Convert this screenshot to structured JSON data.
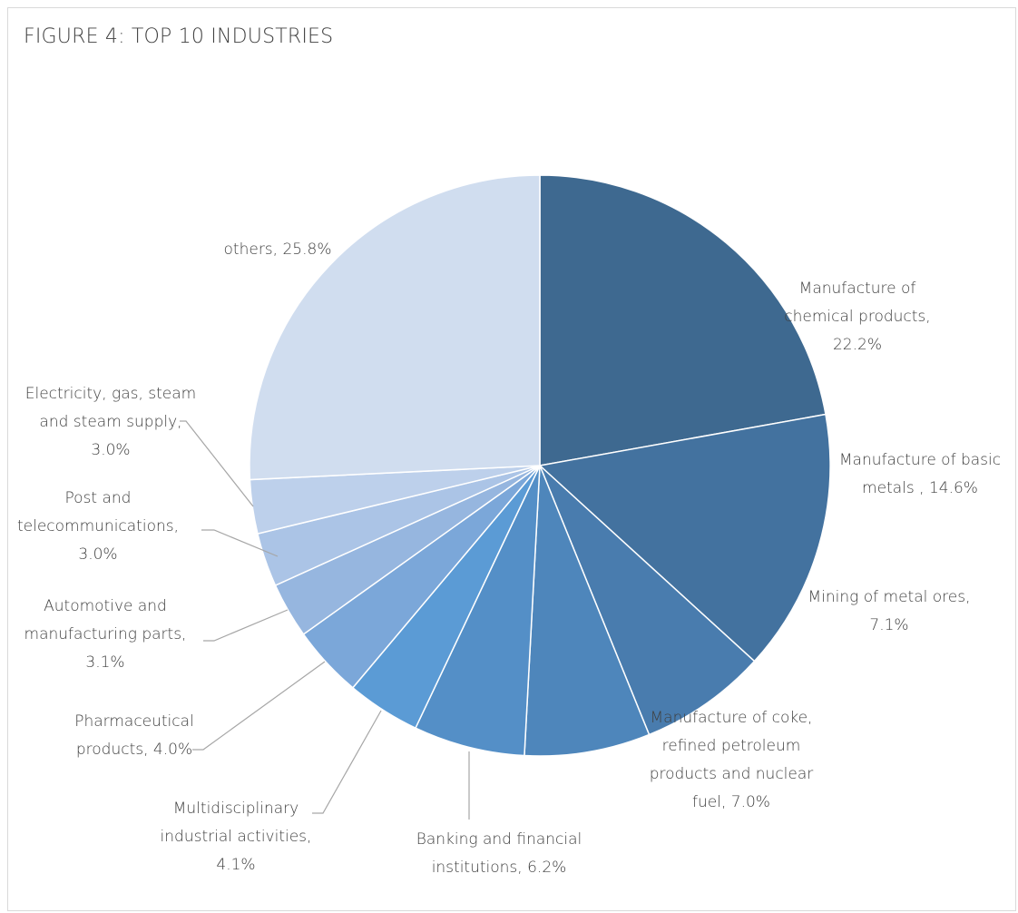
{
  "chart_data": {
    "type": "pie",
    "title": "FIGURE 4: TOP 10 INDUSTRIES",
    "slices": [
      {
        "label": "Manufacture of chemical products",
        "value": 22.2,
        "display": [
          "Manufacture of",
          "chemical products,",
          "22.2%"
        ],
        "color": "#3e6990"
      },
      {
        "label": "Manufacture of basic metals",
        "value": 14.6,
        "display": [
          "Manufacture of basic",
          "metals , 14.6%"
        ],
        "color": "#43729f"
      },
      {
        "label": "Mining of metal ores",
        "value": 7.1,
        "display": [
          "Mining of metal ores,",
          "7.1%"
        ],
        "color": "#497cae"
      },
      {
        "label": "Manufacture of coke, refined petroleum products and nuclear fuel",
        "value": 7.0,
        "display": [
          "Manufacture of coke,",
          "refined petroleum",
          "products and nuclear",
          "fuel, 7.0%"
        ],
        "color": "#4e86bb"
      },
      {
        "label": "Banking and financial institutions",
        "value": 6.2,
        "display": [
          "Banking and financial",
          "institutions, 6.2%"
        ],
        "color": "#548fc7"
      },
      {
        "label": "Multidisciplinary industrial activities",
        "value": 4.1,
        "display": [
          "Multidisciplinary",
          "industrial activities,",
          "4.1%"
        ],
        "color": "#5b9bd5"
      },
      {
        "label": "Pharmaceutical products",
        "value": 4.0,
        "display": [
          "Pharmaceutical",
          "products, 4.0%"
        ],
        "color": "#7ba7d9"
      },
      {
        "label": "Automotive and manufacturing parts",
        "value": 3.1,
        "display": [
          "Automotive and",
          "manufacturing parts,",
          "3.1%"
        ],
        "color": "#96b6df"
      },
      {
        "label": "Post and telecommunications",
        "value": 3.0,
        "display": [
          "Post and",
          "telecommunications,",
          "3.0%"
        ],
        "color": "#abc4e6"
      },
      {
        "label": "Electricity, gas, steam and steam supply",
        "value": 3.0,
        "display": [
          "Electricity, gas, steam",
          "and steam supply,",
          "3.0%"
        ],
        "color": "#bdd0eb"
      },
      {
        "label": "others",
        "value": 25.8,
        "display": [
          "others, 25.8%"
        ],
        "color": "#d0ddef"
      }
    ]
  }
}
